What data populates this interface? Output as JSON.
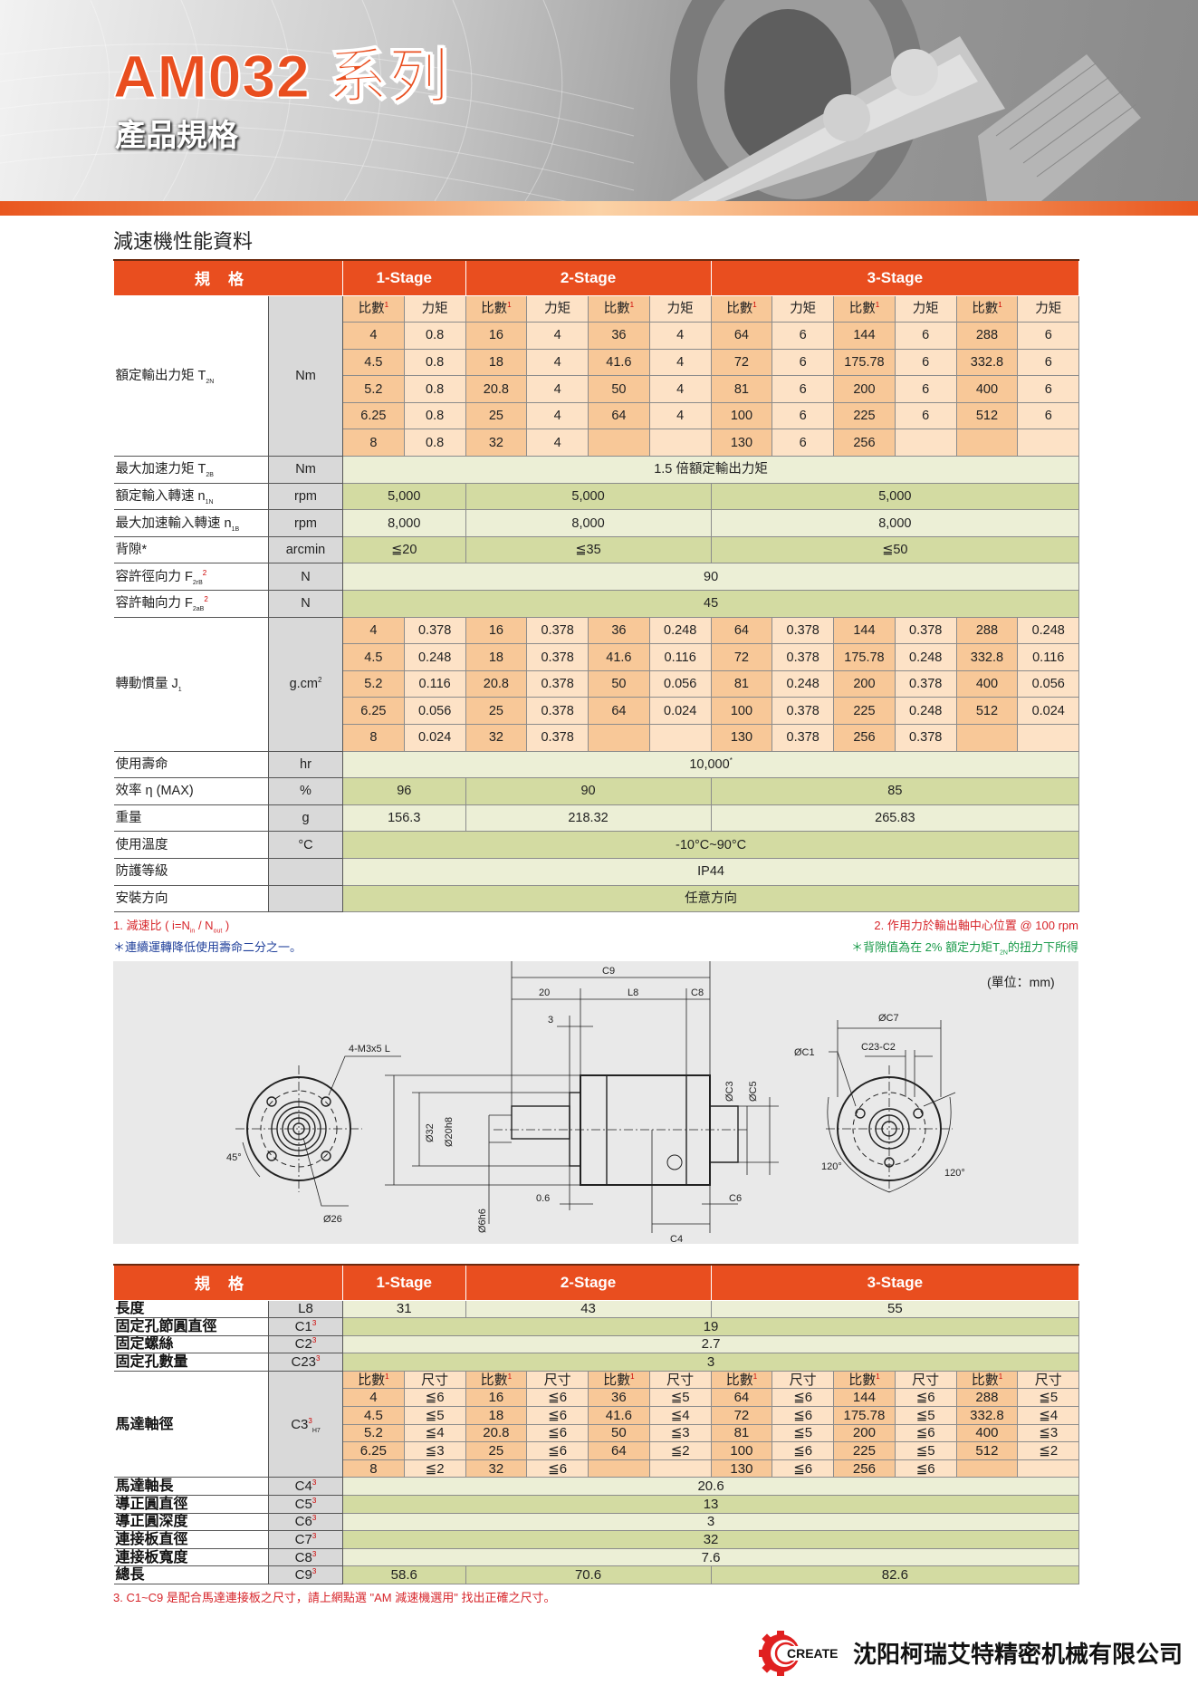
{
  "banner": {
    "title": "AM032 系列",
    "subtitle": "產品規格"
  },
  "spec_table": {
    "heading": "減速機性能資料",
    "header": {
      "spec": "規格",
      "stages": [
        "1-Stage",
        "2-Stage",
        "3-Stage"
      ]
    },
    "sub_labels": {
      "ratio": "比數",
      "ratio_sup": "1",
      "value": "力矩"
    },
    "rows": [
      {
        "label": "額定輸出力矩 T",
        "sub": "2N",
        "unit": "Nm",
        "type": "grid",
        "grid": [
          [
            "4",
            "0.8",
            "16",
            "4",
            "36",
            "4",
            "64",
            "6",
            "144",
            "6",
            "288",
            "6"
          ],
          [
            "4.5",
            "0.8",
            "18",
            "4",
            "41.6",
            "4",
            "72",
            "6",
            "175.78",
            "6",
            "332.8",
            "6"
          ],
          [
            "5.2",
            "0.8",
            "20.8",
            "4",
            "50",
            "4",
            "81",
            "6",
            "200",
            "6",
            "400",
            "6"
          ],
          [
            "6.25",
            "0.8",
            "25",
            "4",
            "64",
            "4",
            "100",
            "6",
            "225",
            "6",
            "512",
            "6"
          ],
          [
            "8",
            "0.8",
            "32",
            "4",
            "",
            "",
            "130",
            "6",
            "256",
            "",
            "",
            ""
          ]
        ]
      },
      {
        "label": "最大加速力矩 T",
        "sub": "2B",
        "unit": "Nm",
        "values": [
          "1.5 倍額定輸出力矩"
        ]
      },
      {
        "label": "額定輸入轉速 n",
        "sub": "1N",
        "unit": "rpm",
        "values": [
          "5,000",
          "5,000",
          "5,000"
        ]
      },
      {
        "label": "最大加速輸入轉速 n",
        "sub": "1B",
        "unit": "rpm",
        "values": [
          "8,000",
          "8,000",
          "8,000"
        ]
      },
      {
        "label": "背隙*",
        "unit": "arcmin",
        "values": [
          "≦20",
          "≦35",
          "≦50"
        ]
      },
      {
        "label": "容許徑向力 F",
        "sub": "2rB",
        "sup": "2",
        "unit": "N",
        "values": [
          "90"
        ]
      },
      {
        "label": "容許軸向力 F",
        "sub": "2aB",
        "sup": "2",
        "unit": "N",
        "values": [
          "45"
        ]
      },
      {
        "label": "轉動慣量 J",
        "sub": "1",
        "unit": "g.cm",
        "unit_sup": "2",
        "type": "grid",
        "nohead": true,
        "grid": [
          [
            "4",
            "0.378",
            "16",
            "0.378",
            "36",
            "0.248",
            "64",
            "0.378",
            "144",
            "0.378",
            "288",
            "0.248"
          ],
          [
            "4.5",
            "0.248",
            "18",
            "0.378",
            "41.6",
            "0.116",
            "72",
            "0.378",
            "175.78",
            "0.248",
            "332.8",
            "0.116"
          ],
          [
            "5.2",
            "0.116",
            "20.8",
            "0.378",
            "50",
            "0.056",
            "81",
            "0.248",
            "200",
            "0.378",
            "400",
            "0.056"
          ],
          [
            "6.25",
            "0.056",
            "25",
            "0.378",
            "64",
            "0.024",
            "100",
            "0.378",
            "225",
            "0.248",
            "512",
            "0.024"
          ],
          [
            "8",
            "0.024",
            "32",
            "0.378",
            "",
            "",
            "130",
            "0.378",
            "256",
            "0.378",
            "",
            ""
          ]
        ]
      },
      {
        "label": "使用壽命",
        "unit": "hr",
        "values": [
          "10,000"
        ],
        "value_sup": "*"
      },
      {
        "label": "效率 η (MAX)",
        "unit": "%",
        "values": [
          "96",
          "90",
          "85"
        ]
      },
      {
        "label": "重量",
        "unit": "g",
        "values": [
          "156.3",
          "218.32",
          "265.83"
        ]
      },
      {
        "label": "使用溫度",
        "unit": "°C",
        "values": [
          "-10°C~90°C"
        ]
      },
      {
        "label": "防護等級",
        "unit": "",
        "values": [
          "IP44"
        ]
      },
      {
        "label": "安裝方向",
        "unit": "",
        "values": [
          "任意方向"
        ]
      }
    ]
  },
  "footnotes": {
    "n1": "1. 減速比 ( i=N",
    "n1_sub1": "in",
    "n1_mid": " / N",
    "n1_sub2": "out",
    "n1_end": " )",
    "n2": "2. 作用力於輸出軸中心位置 @ 100 rpm",
    "star1": "＊連續運轉降低使用壽命二分之一。",
    "star2": "＊背隙值為在 2% 額定力矩T",
    "star2_sub": "2N",
    "star2_end": "的扭力下所得",
    "n3": "3. C1~C9 是配合馬達連接板之尺寸，請上網點選 \"AM 減速機選用\" 找出正確之尺寸。",
    "colors": {
      "red": "#d7262b",
      "blue": "#1f3f9a",
      "green": "#1a9a4a"
    }
  },
  "diagram": {
    "unit": "(單位：mm)",
    "labels": {
      "c9": "C9",
      "d20": "20",
      "l8": "L8",
      "c8": "C8",
      "d3": "3",
      "m3": "4-M3x5 L",
      "c7": "ØC7",
      "c1": "ØC1",
      "c23": "C23-C2",
      "d32": "Ø32",
      "d20h8": "Ø20h8",
      "c3": "ØC3",
      "c5": "ØC5",
      "a45": "45°",
      "d26": "Ø26",
      "d6": "Ø6h6",
      "d06": "0.6",
      "c6": "C6",
      "c4": "C4",
      "a120a": "120°",
      "a120b": "120°"
    }
  },
  "dim_table": {
    "header": {
      "spec": "規格",
      "stages": [
        "1-Stage",
        "2-Stage",
        "3-Stage"
      ]
    },
    "sub_labels": {
      "ratio": "比數",
      "ratio_sup": "1",
      "value": "尺寸"
    },
    "rows": [
      {
        "label": "長度",
        "unit": "L8",
        "values": [
          "31",
          "43",
          "55"
        ]
      },
      {
        "label": "固定孔節圓直徑",
        "unit": "C1",
        "unit_sup": "3",
        "values": [
          "19"
        ]
      },
      {
        "label": "固定螺絲",
        "unit": "C2",
        "unit_sup": "3",
        "values": [
          "2.7"
        ]
      },
      {
        "label": "固定孔數量",
        "unit": "C23",
        "unit_sup": "3",
        "values": [
          "3"
        ]
      },
      {
        "label": "馬達軸徑",
        "unit": "C3",
        "unit_sup": "3",
        "unit_sub": "H7",
        "type": "grid",
        "grid": [
          [
            "4",
            "≦6",
            "16",
            "≦6",
            "36",
            "≦5",
            "64",
            "≦6",
            "144",
            "≦6",
            "288",
            "≦5"
          ],
          [
            "4.5",
            "≦5",
            "18",
            "≦6",
            "41.6",
            "≦4",
            "72",
            "≦6",
            "175.78",
            "≦5",
            "332.8",
            "≦4"
          ],
          [
            "5.2",
            "≦4",
            "20.8",
            "≦6",
            "50",
            "≦3",
            "81",
            "≦5",
            "200",
            "≦6",
            "400",
            "≦3"
          ],
          [
            "6.25",
            "≦3",
            "25",
            "≦6",
            "64",
            "≦2",
            "100",
            "≦6",
            "225",
            "≦5",
            "512",
            "≦2"
          ],
          [
            "8",
            "≦2",
            "32",
            "≦6",
            "",
            "",
            "130",
            "≦6",
            "256",
            "≦6",
            "",
            ""
          ]
        ]
      },
      {
        "label": "馬達軸長",
        "unit": "C4",
        "unit_sup": "3",
        "values": [
          "20.6"
        ]
      },
      {
        "label": "導正圓直徑",
        "unit": "C5",
        "unit_sup": "3",
        "values": [
          "13"
        ]
      },
      {
        "label": "導正圓深度",
        "unit": "C6",
        "unit_sup": "3",
        "values": [
          "3"
        ]
      },
      {
        "label": "連接板直徑",
        "unit": "C7",
        "unit_sup": "3",
        "values": [
          "32"
        ]
      },
      {
        "label": "連接板寬度",
        "unit": "C8",
        "unit_sup": "3",
        "values": [
          "7.6"
        ]
      },
      {
        "label": "總長",
        "unit": "C9",
        "unit_sup": "3",
        "values": [
          "58.6",
          "70.6",
          "82.6"
        ]
      }
    ]
  },
  "footer": {
    "logo_text": "CREATE",
    "company": "沈阳柯瑞艾特精密机械有限公司"
  },
  "colors": {
    "accent": "#e94e1f",
    "ratio_cell": "#f8c898",
    "value_cell": "#fde2c6",
    "green_dark": "#d3dba2",
    "green_light": "#ecefd6"
  }
}
